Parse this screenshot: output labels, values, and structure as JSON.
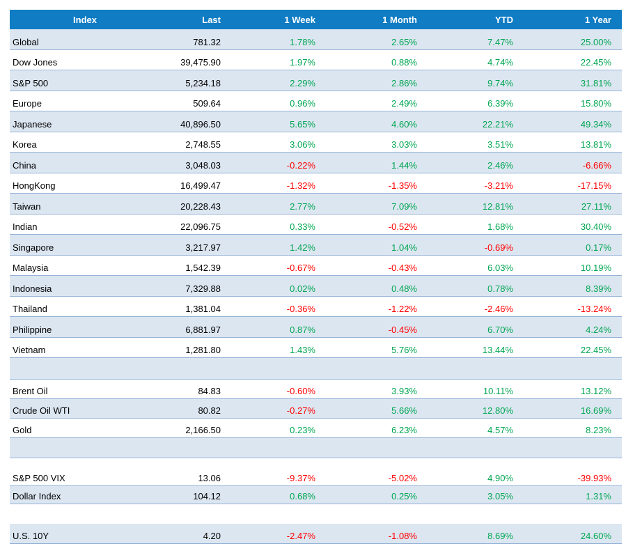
{
  "colors": {
    "header_bg": "#0F7CC4",
    "header_text": "#FFFFFF",
    "row_shade": "#DCE6F1",
    "row_border": "#95B3D7",
    "positive": "#00A651",
    "negative": "#FF0000",
    "text": "#000000"
  },
  "table": {
    "columns": [
      "Index",
      "Last",
      "1 Week",
      "1 Month",
      "YTD",
      "1 Year"
    ],
    "sections": [
      {
        "name": "equity-indices",
        "rows": [
          {
            "name": "Global",
            "last": "781.32",
            "week": "1.78%",
            "month": "2.65%",
            "ytd": "7.47%",
            "year": "25.00%"
          },
          {
            "name": "Dow Jones",
            "last": "39,475.90",
            "week": "1.97%",
            "month": "0.88%",
            "ytd": "4.74%",
            "year": "22.45%"
          },
          {
            "name": "S&P 500",
            "last": "5,234.18",
            "week": "2.29%",
            "month": "2.86%",
            "ytd": "9.74%",
            "year": "31.81%"
          },
          {
            "name": "Europe",
            "last": "509.64",
            "week": "0.96%",
            "month": "2.49%",
            "ytd": "6.39%",
            "year": "15.80%"
          },
          {
            "name": "Japanese",
            "last": "40,896.50",
            "week": "5.65%",
            "month": "4.60%",
            "ytd": "22.21%",
            "year": "49.34%"
          },
          {
            "name": "Korea",
            "last": "2,748.55",
            "week": "3.06%",
            "month": "3.03%",
            "ytd": "3.51%",
            "year": "13.81%"
          },
          {
            "name": "China",
            "last": "3,048.03",
            "week": "-0.22%",
            "month": "1.44%",
            "ytd": "2.46%",
            "year": "-6.66%"
          },
          {
            "name": "HongKong",
            "last": "16,499.47",
            "week": "-1.32%",
            "month": "-1.35%",
            "ytd": "-3.21%",
            "year": "-17.15%"
          },
          {
            "name": "Taiwan",
            "last": "20,228.43",
            "week": "2.77%",
            "month": "7.09%",
            "ytd": "12.81%",
            "year": "27.11%"
          },
          {
            "name": "Indian",
            "last": "22,096.75",
            "week": "0.33%",
            "month": "-0.52%",
            "ytd": "1.68%",
            "year": "30.40%"
          },
          {
            "name": "Singapore",
            "last": "3,217.97",
            "week": "1.42%",
            "month": "1.04%",
            "ytd": "-0.69%",
            "year": "0.17%"
          },
          {
            "name": "Malaysia",
            "last": "1,542.39",
            "week": "-0.67%",
            "month": "-0.43%",
            "ytd": "6.03%",
            "year": "10.19%"
          },
          {
            "name": "Indonesia",
            "last": "7,329.88",
            "week": "0.02%",
            "month": "0.48%",
            "ytd": "0.78%",
            "year": "8.39%"
          },
          {
            "name": "Thailand",
            "last": "1,381.04",
            "week": "-0.36%",
            "month": "-1.22%",
            "ytd": "-2.46%",
            "year": "-13.24%"
          },
          {
            "name": "Philippine",
            "last": "6,881.97",
            "week": "0.87%",
            "month": "-0.45%",
            "ytd": "6.70%",
            "year": "4.24%"
          },
          {
            "name": "Vietnam",
            "last": "1,281.80",
            "week": "1.43%",
            "month": "5.76%",
            "ytd": "13.44%",
            "year": "22.45%"
          }
        ]
      },
      {
        "name": "commodities",
        "rows": [
          {
            "name": "Brent Oil",
            "last": "84.83",
            "week": "-0.60%",
            "month": "3.93%",
            "ytd": "10.11%",
            "year": "13.12%"
          },
          {
            "name": "Crude Oil WTI",
            "last": "80.82",
            "week": "-0.27%",
            "month": "5.66%",
            "ytd": "12.80%",
            "year": "16.69%"
          },
          {
            "name": "Gold",
            "last": "2,166.50",
            "week": "0.23%",
            "month": "6.23%",
            "ytd": "4.57%",
            "year": "8.23%"
          }
        ]
      },
      {
        "name": "volatility-currency",
        "rows": [
          {
            "name": "S&P 500 VIX",
            "last": "13.06",
            "week": "-9.37%",
            "month": "-5.02%",
            "ytd": "4.90%",
            "year": "-39.93%"
          },
          {
            "name": "Dollar Index",
            "last": "104.12",
            "week": "0.68%",
            "month": "0.25%",
            "ytd": "3.05%",
            "year": "1.31%"
          }
        ]
      },
      {
        "name": "rates",
        "rows": [
          {
            "name": "U.S. 10Y",
            "last": "4.20",
            "week": "-2.47%",
            "month": "-1.08%",
            "ytd": "8.69%",
            "year": "24.60%"
          }
        ]
      }
    ]
  }
}
